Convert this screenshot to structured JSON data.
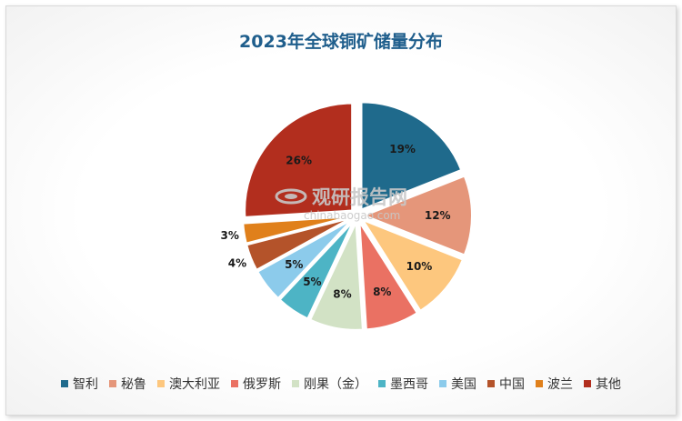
{
  "chart_data": {
    "type": "pie",
    "title": "2023年全球铜矿储量分布",
    "categories": [
      "智利",
      "秘鲁",
      "澳大利亚",
      "俄罗斯",
      "刚果（金）",
      "墨西哥",
      "美国",
      "中国",
      "波兰",
      "其他"
    ],
    "values": [
      19,
      12,
      10,
      8,
      8,
      5,
      5,
      4,
      3,
      26
    ],
    "data_labels": [
      "19%",
      "12%",
      "10%",
      "8%",
      "8%",
      "5%",
      "5%",
      "4%",
      "3%",
      "26%"
    ],
    "colors": [
      "#1f6a8c",
      "#e5967a",
      "#fdc77e",
      "#ea7163",
      "#d2e2c5",
      "#4db4c5",
      "#8ccbeb",
      "#b4532a",
      "#e0801b",
      "#b22e1e"
    ],
    "exploded": true,
    "legend_position": "bottom"
  },
  "watermark": {
    "brand": "观研报告网",
    "url": "chinabaogao.com"
  }
}
